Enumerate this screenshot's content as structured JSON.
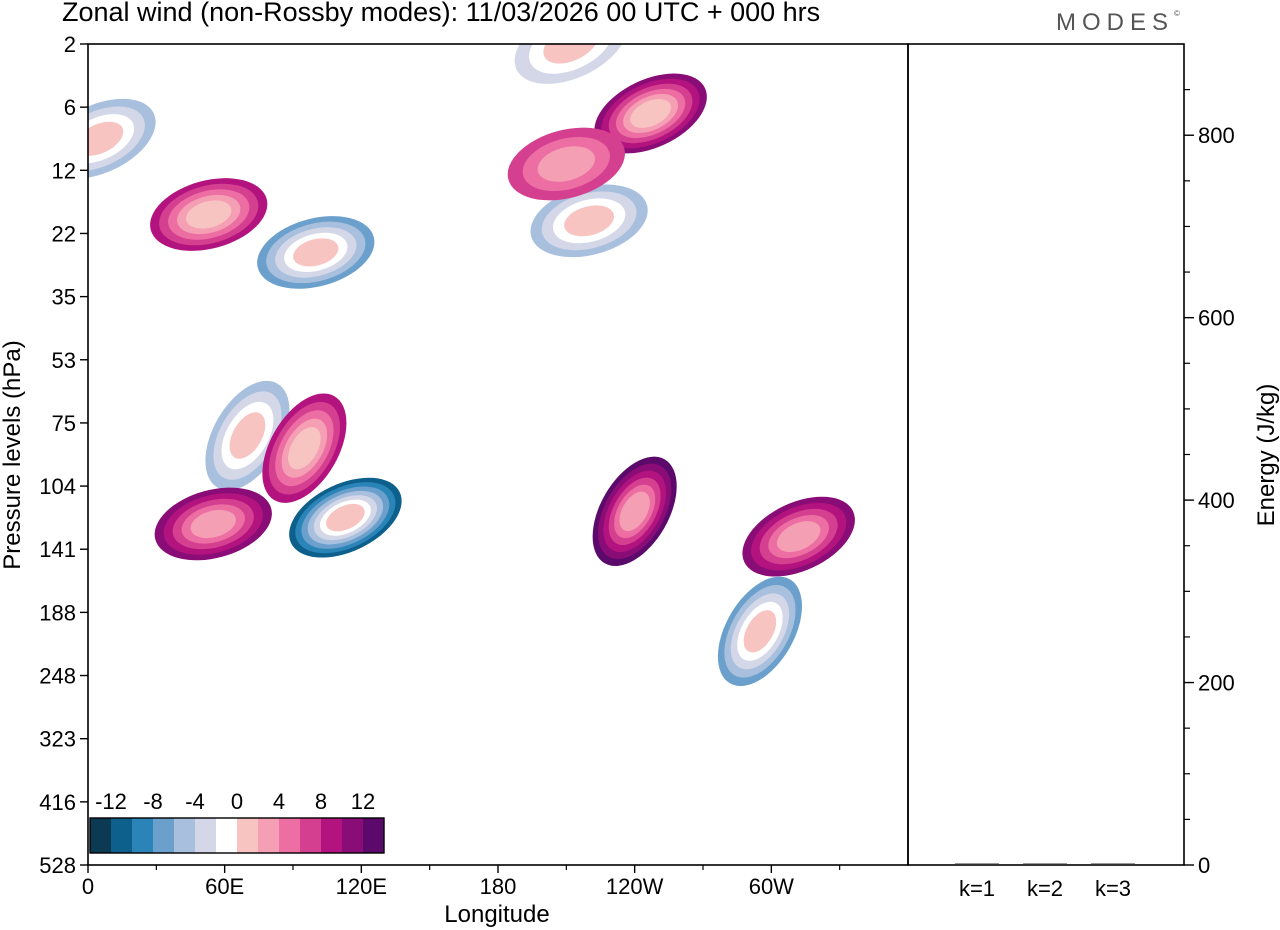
{
  "header": {
    "title": "Zonal wind (non-Rossby modes):  11/03/2026  00 UTC  + 000 hrs",
    "logo_text": "MODES",
    "logo_mark": "©"
  },
  "chart_data": [
    {
      "type": "heatmap",
      "title": "Zonal wind (non-Rossby modes)",
      "xlabel": "Longitude",
      "ylabel": "Pressure levels (hPa)",
      "x_tick_labels": [
        "0",
        "60E",
        "120E",
        "180",
        "120W",
        "60W"
      ],
      "y_tick_labels": [
        "2",
        "6",
        "12",
        "22",
        "35",
        "53",
        "75",
        "104",
        "141",
        "188",
        "248",
        "323",
        "416",
        "528"
      ],
      "colorbar": {
        "labels": [
          "-12",
          "-8",
          "-4",
          "0",
          "4",
          "8",
          "12"
        ],
        "levels": [
          -14,
          -12,
          -10,
          -8,
          -6,
          -4,
          -2,
          2,
          4,
          6,
          8,
          10,
          12,
          14
        ],
        "colors": [
          "#0b3a52",
          "#0d5f8c",
          "#2b84b8",
          "#6aa0cb",
          "#a8c0de",
          "#d4d7e8",
          "#ffffff",
          "#f8c4c2",
          "#f59fb5",
          "#ec6ea3",
          "#d53f8f",
          "#b3137e",
          "#8a0c76",
          "#5b0a6b"
        ]
      },
      "features": [
        {
          "lon": 113,
          "level_index": 7.5,
          "value": -14
        },
        {
          "lon": 100,
          "level_index": 3.3,
          "value": -10
        },
        {
          "lon": 70,
          "level_index": 6.2,
          "value": -7
        },
        {
          "lon": 212,
          "level_index": 0.0,
          "value": -6
        },
        {
          "lon": 220,
          "level_index": 2.8,
          "value": -8
        },
        {
          "lon": 295,
          "level_index": 9.3,
          "value": -10
        },
        {
          "lon": 5,
          "level_index": 1.5,
          "value": -8
        },
        {
          "lon": 53,
          "level_index": 2.7,
          "value": 9
        },
        {
          "lon": 95,
          "level_index": 6.4,
          "value": 9
        },
        {
          "lon": 247,
          "level_index": 1.1,
          "value": 11
        },
        {
          "lon": 55,
          "level_index": 7.6,
          "value": 10
        },
        {
          "lon": 240,
          "level_index": 7.4,
          "value": 12
        },
        {
          "lon": 312,
          "level_index": 7.8,
          "value": 10
        },
        {
          "lon": 210,
          "level_index": 1.9,
          "value": 6
        }
      ]
    },
    {
      "type": "bar",
      "xlabel": "",
      "ylabel": "Energy (J/kg)",
      "categories": [
        "k=1",
        "k=2",
        "k=3"
      ],
      "values": [
        0.8,
        0.6,
        0.6
      ],
      "ylim": [
        0,
        900
      ],
      "y_tick_labels": [
        "0",
        "200",
        "400",
        "600",
        "800"
      ]
    }
  ]
}
